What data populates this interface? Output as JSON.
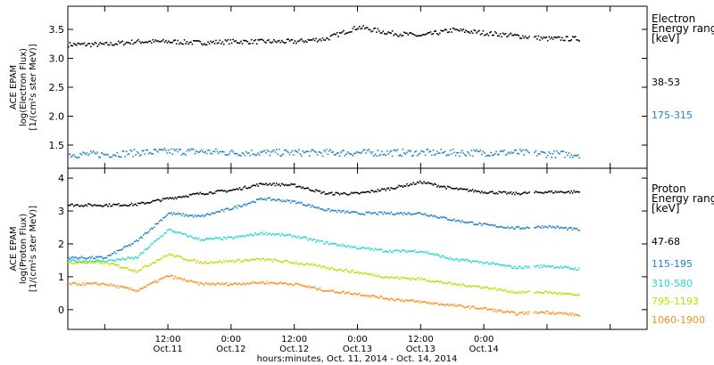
{
  "chart_data": [
    {
      "type": "scatter",
      "panel": "electron",
      "ylabel_lines": [
        "ACE EPAM",
        "log(Electron Flux)",
        "[1/(cm²s ster MeV)]"
      ],
      "ylim": [
        1.1,
        3.9
      ],
      "yticks": [
        1.5,
        2.0,
        2.5,
        3.0,
        3.5
      ],
      "ytick_labels": [
        "1.5",
        "2.0",
        "2.5",
        "3.0",
        "3.5"
      ],
      "legend_title": [
        "Electron",
        "Energy range",
        "[keV]"
      ],
      "series": [
        {
          "name": "38-53",
          "color": "#000000",
          "x": [
            0,
            6,
            12,
            18,
            24,
            30,
            36,
            42,
            48,
            54,
            60,
            66,
            72,
            78,
            84,
            90
          ],
          "y": [
            3.25,
            3.3,
            3.3,
            3.28,
            3.3,
            3.3,
            3.3,
            3.35,
            3.55,
            3.45,
            3.4,
            3.5,
            3.45,
            3.4,
            3.35,
            3.35
          ]
        },
        {
          "name": "175-315",
          "color": "#1e7fd0",
          "x": [
            0,
            6,
            12,
            18,
            24,
            30,
            36,
            42,
            48,
            54,
            60,
            66,
            72,
            78,
            84,
            90
          ],
          "y": [
            1.35,
            1.38,
            1.4,
            1.4,
            1.38,
            1.38,
            1.38,
            1.38,
            1.38,
            1.38,
            1.38,
            1.38,
            1.38,
            1.38,
            1.36,
            1.35
          ]
        }
      ]
    },
    {
      "type": "scatter",
      "panel": "proton",
      "ylabel_lines": [
        "ACE EPAM",
        "log(Proton Flux)",
        "[1/(cm²s ster MeV)]"
      ],
      "ylim": [
        -0.6,
        4.3
      ],
      "yticks": [
        0,
        1,
        2,
        3,
        4
      ],
      "ytick_labels": [
        "0",
        "1",
        "2",
        "3",
        "4"
      ],
      "legend_title": [
        "Proton",
        "Energy range",
        "[keV]"
      ],
      "series": [
        {
          "name": "47-68",
          "color": "#000000",
          "x": [
            0,
            6,
            12,
            18,
            24,
            30,
            36,
            42,
            48,
            54,
            60,
            66,
            72,
            78,
            84,
            90
          ],
          "y": [
            3.2,
            3.22,
            3.4,
            3.55,
            3.65,
            3.85,
            3.8,
            3.55,
            3.55,
            3.7,
            3.9,
            3.7,
            3.6,
            3.55,
            3.6,
            3.6
          ]
        },
        {
          "name": "115-195",
          "color": "#1e7fd0",
          "x": [
            0,
            6,
            12,
            18,
            24,
            30,
            36,
            42,
            48,
            54,
            60,
            66,
            72,
            78,
            84,
            90
          ],
          "y": [
            1.6,
            2.1,
            2.95,
            2.85,
            3.1,
            3.4,
            3.3,
            3.05,
            2.95,
            2.95,
            2.95,
            2.75,
            2.6,
            2.5,
            2.55,
            2.45
          ]
        },
        {
          "name": "310-580",
          "color": "#22d8cc",
          "x": [
            0,
            6,
            12,
            18,
            24,
            30,
            36,
            42,
            48,
            54,
            60,
            66,
            72,
            78,
            84,
            90
          ],
          "y": [
            1.5,
            1.6,
            2.45,
            2.15,
            2.2,
            2.35,
            2.25,
            2.05,
            1.9,
            1.8,
            1.8,
            1.55,
            1.45,
            1.3,
            1.35,
            1.25
          ]
        },
        {
          "name": "795-1193",
          "color": "#c4d900",
          "x": [
            0,
            6,
            12,
            18,
            24,
            30,
            36,
            42,
            48,
            54,
            60,
            66,
            72,
            78,
            84,
            90
          ],
          "y": [
            1.45,
            1.2,
            1.7,
            1.45,
            1.5,
            1.55,
            1.45,
            1.3,
            1.15,
            1.0,
            0.95,
            0.8,
            0.7,
            0.55,
            0.55,
            0.45
          ]
        },
        {
          "name": "1060-1900",
          "color": "#ff8c1a",
          "x": [
            0,
            6,
            12,
            18,
            24,
            30,
            36,
            42,
            48,
            54,
            60,
            66,
            72,
            78,
            84,
            90
          ],
          "y": [
            0.8,
            0.6,
            1.05,
            0.8,
            0.8,
            0.85,
            0.8,
            0.6,
            0.5,
            0.35,
            0.25,
            0.15,
            0.05,
            -0.1,
            -0.05,
            -0.15
          ]
        }
      ]
    }
  ],
  "x_axis": {
    "xlim": [
      -7,
      103
    ],
    "ticks": [
      0,
      12,
      24,
      36,
      48,
      60,
      72,
      84,
      96
    ],
    "labeled_ticks": [
      {
        "x": 12,
        "time": "12:00",
        "date": "Oct.11"
      },
      {
        "x": 24,
        "time": "0:00",
        "date": "Oct.12"
      },
      {
        "x": 36,
        "time": "12:00",
        "date": "Oct.12"
      },
      {
        "x": 48,
        "time": "0:00",
        "date": "Oct.13"
      },
      {
        "x": 60,
        "time": "12:00",
        "date": "Oct.13"
      },
      {
        "x": 72,
        "time": "0:00",
        "date": "Oct.14"
      }
    ],
    "label": "hours:minutes, Oct. 11, 2014 - Oct. 14, 2014"
  }
}
